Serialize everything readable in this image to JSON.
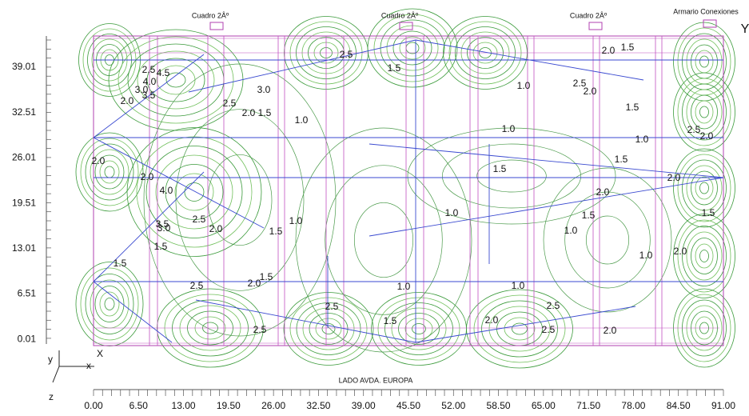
{
  "header": {
    "panels": [
      "Cuadro 2Âº",
      "Cuadro 2Âº",
      "Cuadro 2Âº"
    ],
    "cabinet": "Armario Conexiones",
    "y_axis_letter": "Y"
  },
  "scale": {
    "x_title": "LADO AVDA. EUROPA",
    "x_labels": [
      "0.00",
      "6.50",
      "13.00",
      "19.50",
      "26.00",
      "32.50",
      "39.00",
      "45.50",
      "52.00",
      "58.50",
      "65.00",
      "71.50",
      "78.00",
      "84.50",
      "91.00"
    ],
    "y_labels": [
      "39.01",
      "32.51",
      "26.01",
      "19.51",
      "13.01",
      "6.51",
      "0.01"
    ]
  },
  "axes_icon": {
    "y": "y",
    "X": "X",
    "x": "x",
    "z": "z"
  },
  "contour_labels": [
    "2.5",
    "4.5",
    "4.0",
    "3.0",
    "3.5",
    "2.0",
    "3.0",
    "2.5",
    "2.0",
    "1.5",
    "1.0",
    "2.5",
    "1.5",
    "1.0",
    "2.5",
    "2.0",
    "2.0",
    "1.5",
    "1.5",
    "1.0",
    "1.0",
    "2.5",
    "2.0",
    "1.5",
    "2.0",
    "2.0",
    "2.0",
    "4.0",
    "1.5",
    "2.0",
    "1.0",
    "1.5",
    "1.0",
    "1.5",
    "3.5",
    "3.0",
    "2.5",
    "2.0",
    "1.0",
    "1.5",
    "1.5",
    "1.5",
    "1.0",
    "2.0",
    "1.5",
    "2.5",
    "2.0",
    "1.0",
    "1.0",
    "2.5",
    "2.5",
    "1.5",
    "2.0",
    "2.5",
    "2.5",
    "2.0"
  ]
}
